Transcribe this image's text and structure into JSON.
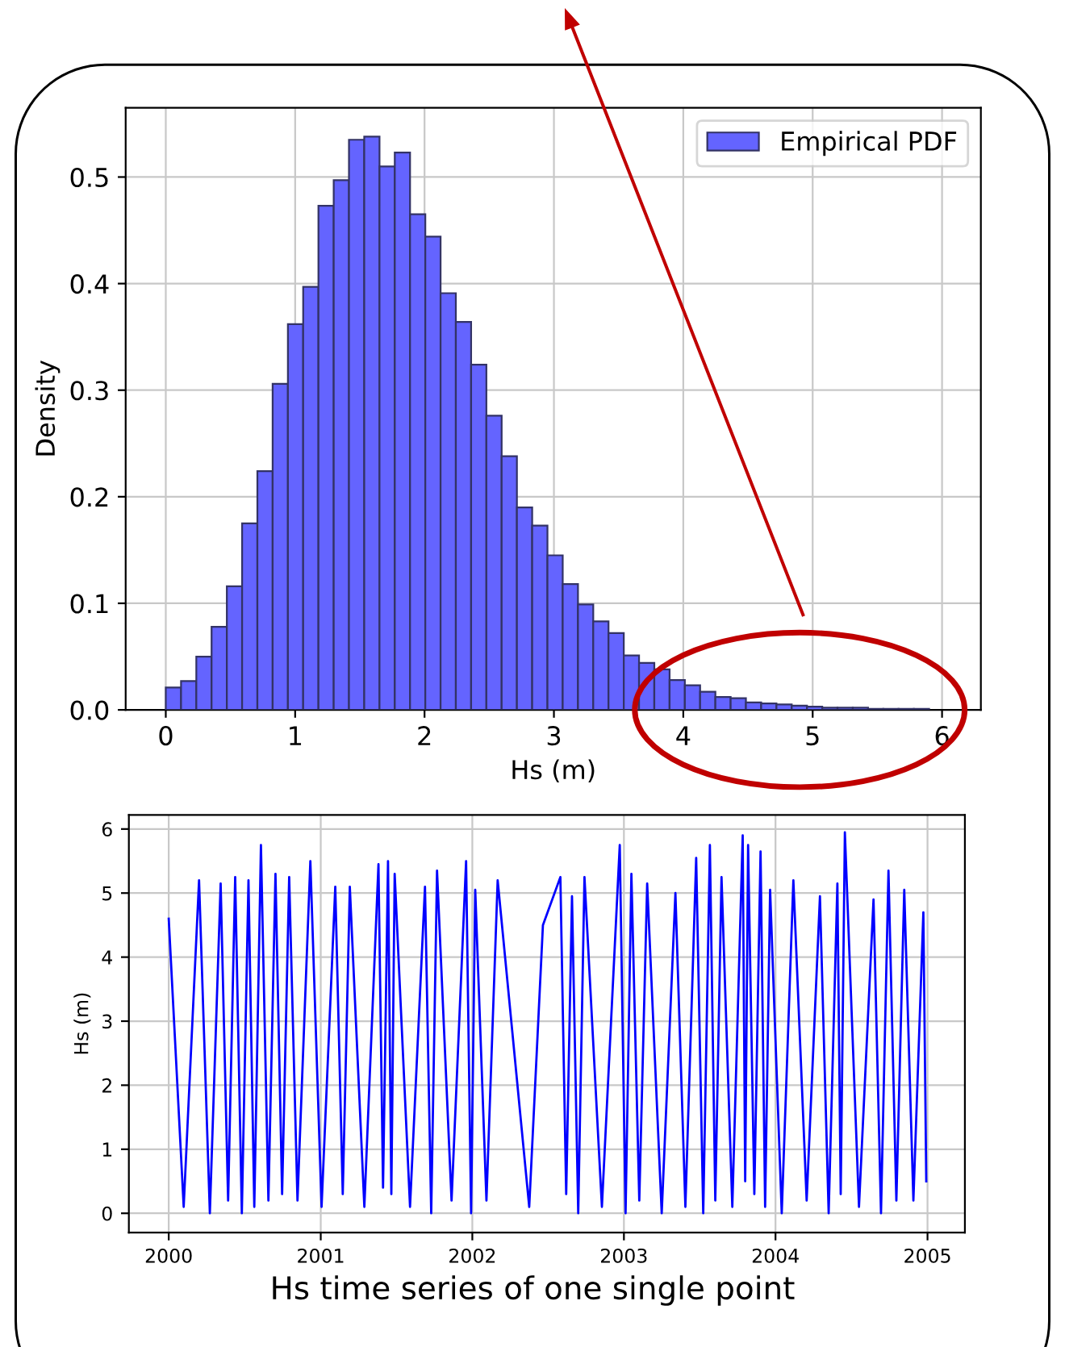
{
  "chart_data": [
    {
      "type": "histogram",
      "xlabel": "Hs (m)",
      "ylabel": "Density",
      "bins": [
        0,
        0.118,
        0.236,
        0.354,
        0.472,
        0.59,
        0.708,
        0.826,
        0.944,
        1.062,
        1.18,
        1.298,
        1.416,
        1.534,
        1.652,
        1.77,
        1.888,
        2.006,
        2.124,
        2.242,
        2.36,
        2.478,
        2.596,
        2.714,
        2.832,
        2.95,
        3.068,
        3.186,
        3.304,
        3.422,
        3.54,
        3.658,
        3.776,
        3.894,
        4.012,
        4.13,
        4.248,
        4.366,
        4.484,
        4.602,
        4.72,
        4.838,
        4.956,
        5.074,
        5.192,
        5.31,
        5.428,
        5.546,
        5.664,
        5.782,
        5.9
      ],
      "series": [
        {
          "name": "Empirical PDF",
          "color": "#6464ff",
          "values": [
            0.021,
            0.027,
            0.05,
            0.078,
            0.116,
            0.175,
            0.224,
            0.306,
            0.362,
            0.397,
            0.473,
            0.497,
            0.535,
            0.538,
            0.51,
            0.523,
            0.465,
            0.444,
            0.391,
            0.364,
            0.324,
            0.276,
            0.238,
            0.19,
            0.173,
            0.145,
            0.118,
            0.099,
            0.083,
            0.072,
            0.051,
            0.044,
            0.038,
            0.028,
            0.023,
            0.017,
            0.012,
            0.011,
            0.007,
            0.006,
            0.005,
            0.004,
            0.003,
            0.002,
            0.002,
            0.002,
            0.001,
            0.001,
            0.001,
            0.001
          ]
        }
      ],
      "xlim": [
        -0.31,
        6.3
      ],
      "ylim": [
        0,
        0.565
      ],
      "xticks": [
        0,
        1,
        2,
        3,
        4,
        5,
        6
      ],
      "yticks": [
        {
          "value": 0,
          "label": "0.0"
        },
        0.1,
        0.2,
        0.3,
        0.4,
        0.5
      ],
      "grid": true,
      "legend": "top right"
    },
    {
      "type": "line",
      "ylabel": "Hs (m)",
      "annotations": [
        "Hs time series of one single point"
      ],
      "x": [
        "2000-01-01",
        "2000-02-06",
        "2000-03-14",
        "2000-04-09",
        "2000-05-05",
        "2000-05-23",
        "2000-06-09",
        "2000-06-25",
        "2000-07-11",
        "2000-07-25",
        "2000-08-10",
        "2000-08-28",
        "2000-09-14",
        "2000-09-30",
        "2000-10-17",
        "2000-11-06",
        "2000-12-07",
        "2001-01-03",
        "2001-02-05",
        "2001-02-23",
        "2001-03-12",
        "2001-04-16",
        "2001-05-20",
        "2001-05-31",
        "2001-06-12",
        "2001-06-20",
        "2001-06-28",
        "2001-08-04",
        "2001-09-09",
        "2001-09-24",
        "2001-10-08",
        "2001-11-12",
        "2001-12-17",
        "2001-12-29",
        "2002-01-08",
        "2002-02-04",
        "2002-03-03",
        "2002-05-18",
        "2002-06-20",
        "2002-08-01",
        "2002-08-15",
        "2002-08-29",
        "2002-09-13",
        "2002-09-28",
        "2002-11-09",
        "2002-12-22",
        "2003-01-05",
        "2003-01-19",
        "2003-02-07",
        "2003-02-26",
        "2003-04-02",
        "2003-05-05",
        "2003-05-29",
        "2003-06-24",
        "2003-07-11",
        "2003-07-27",
        "2003-08-09",
        "2003-08-24",
        "2003-09-19",
        "2003-10-14",
        "2003-10-20",
        "2003-10-27",
        "2003-11-11",
        "2003-11-26",
        "2003-12-07",
        "2003-12-19",
        "2004-01-16",
        "2004-02-13",
        "2004-03-16",
        "2004-04-17",
        "2004-05-08",
        "2004-05-29",
        "2004-06-06",
        "2004-06-16",
        "2004-07-20",
        "2004-08-24",
        "2004-09-11",
        "2004-09-29",
        "2004-10-18",
        "2004-11-06",
        "2004-11-28",
        "2004-12-22",
        "2004-12-29"
      ],
      "series": [
        {
          "color": "#0000ff",
          "values": [
            4.6,
            0.1,
            5.2,
            0.0,
            5.15,
            0.2,
            5.25,
            0.0,
            5.2,
            0.1,
            5.75,
            0.2,
            5.3,
            0.3,
            5.25,
            0.2,
            5.5,
            0.1,
            5.1,
            0.3,
            5.1,
            0.1,
            5.45,
            0.4,
            5.5,
            0.3,
            5.3,
            0.1,
            5.1,
            0.0,
            5.35,
            0.2,
            5.5,
            0.0,
            5.05,
            0.2,
            5.2,
            0.1,
            4.5,
            5.25,
            0.3,
            4.95,
            0.0,
            5.25,
            0.1,
            5.75,
            0.0,
            5.3,
            0.2,
            5.15,
            0.0,
            5.0,
            0.1,
            5.55,
            0.0,
            5.75,
            0.2,
            5.25,
            0.1,
            5.9,
            0.5,
            5.75,
            0.3,
            5.65,
            0.1,
            5.05,
            0.0,
            5.2,
            0.2,
            4.95,
            0.0,
            5.15,
            0.3,
            5.95,
            0.1,
            4.9,
            0.0,
            5.35,
            0.2,
            5.05,
            0.2,
            4.7,
            0.5
          ]
        }
      ],
      "xlim": [
        "1999-09-27",
        "2005-04-01"
      ],
      "ylim": [
        -0.3,
        6.22
      ],
      "xticks": [
        {
          "value": "2000-01-01",
          "label": "2000"
        },
        {
          "value": "2001-01-01",
          "label": "2001"
        },
        {
          "value": "2002-01-01",
          "label": "2002"
        },
        {
          "value": "2003-01-01",
          "label": "2003"
        },
        {
          "value": "2004-01-01",
          "label": "2004"
        },
        {
          "value": "2005-01-01",
          "label": "2005"
        }
      ],
      "yticks": [
        0,
        1,
        2,
        3,
        4,
        5,
        6
      ],
      "grid": true,
      "legend": false
    }
  ]
}
